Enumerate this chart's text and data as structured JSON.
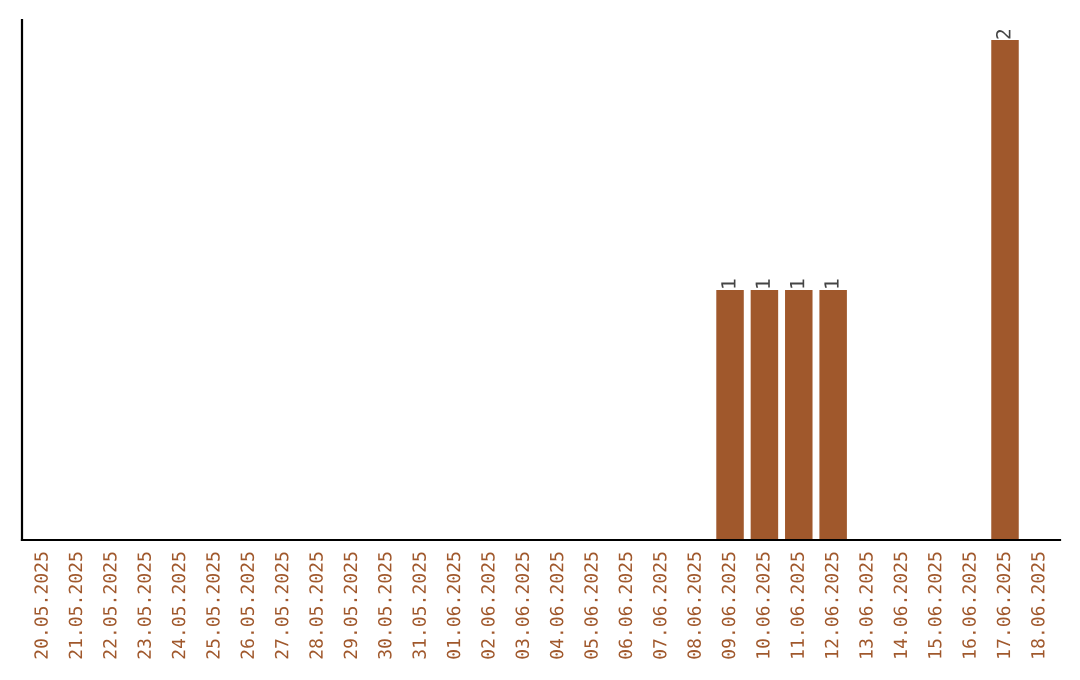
{
  "chart_data": {
    "type": "bar",
    "categories": [
      "20.05.2025",
      "21.05.2025",
      "22.05.2025",
      "23.05.2025",
      "24.05.2025",
      "25.05.2025",
      "26.05.2025",
      "27.05.2025",
      "28.05.2025",
      "29.05.2025",
      "30.05.2025",
      "31.05.2025",
      "01.06.2025",
      "02.06.2025",
      "03.06.2025",
      "04.06.2025",
      "05.06.2025",
      "06.06.2025",
      "07.06.2025",
      "08.06.2025",
      "09.06.2025",
      "10.06.2025",
      "11.06.2025",
      "12.06.2025",
      "13.06.2025",
      "14.06.2025",
      "15.06.2025",
      "16.06.2025",
      "17.06.2025",
      "18.06.2025"
    ],
    "values": [
      null,
      null,
      null,
      null,
      null,
      null,
      null,
      null,
      null,
      null,
      null,
      null,
      null,
      null,
      null,
      null,
      null,
      null,
      null,
      null,
      1,
      1,
      1,
      1,
      null,
      null,
      null,
      null,
      2,
      null
    ],
    "data_labels": true,
    "color": "#a0582c",
    "tick_labels": "x",
    "grid": false
  }
}
